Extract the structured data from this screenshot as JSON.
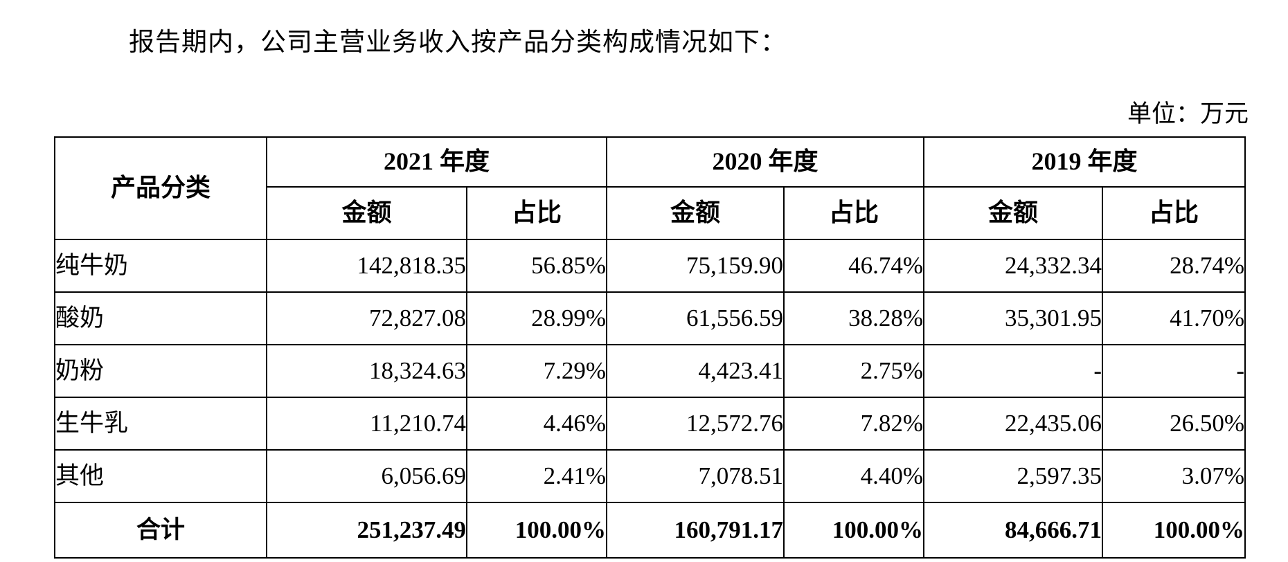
{
  "intro": "报告期内，公司主营业务收入按产品分类构成情况如下：",
  "unit_label": "单位：万元",
  "table": {
    "product_header": "产品分类",
    "years": [
      "2021 年度",
      "2020 年度",
      "2019 年度"
    ],
    "sub_headers": [
      "金额",
      "占比"
    ],
    "rows": [
      {
        "name": "纯牛奶",
        "cells": [
          "142,818.35",
          "56.85%",
          "75,159.90",
          "46.74%",
          "24,332.34",
          "28.74%"
        ]
      },
      {
        "name": "酸奶",
        "cells": [
          "72,827.08",
          "28.99%",
          "61,556.59",
          "38.28%",
          "35,301.95",
          "41.70%"
        ]
      },
      {
        "name": "奶粉",
        "cells": [
          "18,324.63",
          "7.29%",
          "4,423.41",
          "2.75%",
          "-",
          "-"
        ]
      },
      {
        "name": "生牛乳",
        "cells": [
          "11,210.74",
          "4.46%",
          "12,572.76",
          "7.82%",
          "22,435.06",
          "26.50%"
        ]
      },
      {
        "name": "其他",
        "cells": [
          "6,056.69",
          "2.41%",
          "7,078.51",
          "4.40%",
          "2,597.35",
          "3.07%"
        ]
      }
    ],
    "total": {
      "name": "合计",
      "cells": [
        "251,237.49",
        "100.00%",
        "160,791.17",
        "100.00%",
        "84,666.71",
        "100.00%"
      ]
    }
  }
}
